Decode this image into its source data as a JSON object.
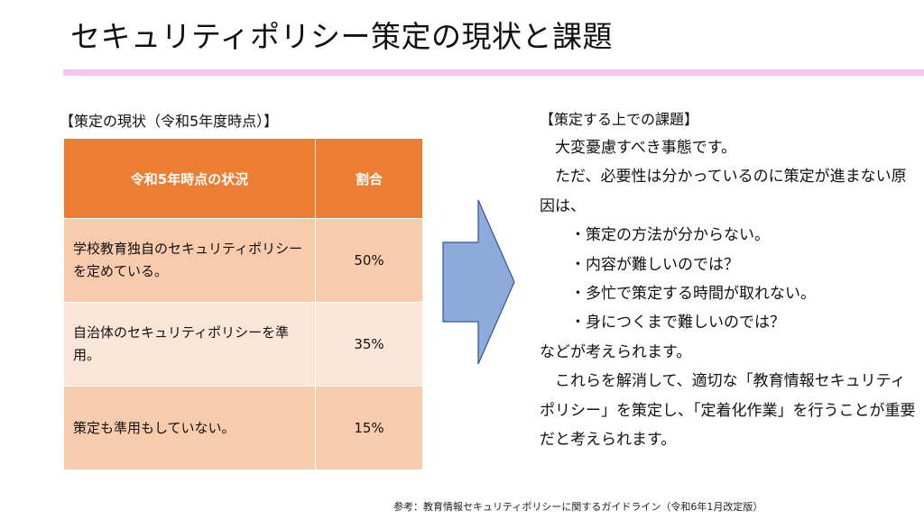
{
  "title": "セキュリティポリシー策定の現状と課題",
  "left": {
    "heading": "【策定の現状（令和5年度時点）】",
    "table": {
      "headers": [
        "令和5年時点の状況",
        "割合"
      ],
      "rows": [
        {
          "status": "学校教育独自のセキュリティポリシーを定めている。",
          "ratio": "50%"
        },
        {
          "status": "自治体のセキュリティポリシーを準用。",
          "ratio": "35%"
        },
        {
          "status": "策定も準用もしていない。",
          "ratio": "15%"
        }
      ]
    }
  },
  "arrow": {
    "icon": "right-arrow-icon",
    "color": "#8eaadb",
    "border": "#2f5597"
  },
  "right": {
    "heading": "【策定する上での課題】",
    "lines": [
      "　大変憂慮すべき事態です。",
      "　ただ、必要性は分かっているのに策定が進まない原因は、",
      "　　・策定の方法が分からない。",
      "　　・内容が難しいのでは？",
      "　　・多忙で策定する時間が取れない。",
      "　　・身につくまで難しいのでは？",
      "などが考えられます。",
      "　これらを解消して、適切な「教育情報セキュリティポリシー」を策定し、「定着化作業」を行うことが重要だと考えられます。"
    ]
  },
  "footnote": "参考：教育情報セキュリティポリシーに関するガイドライン（令和6年1月改定版）",
  "colors": {
    "accent_rule": "#f7c3f2",
    "table_header": "#ed7d31",
    "table_row_dark": "#f8cbad",
    "table_row_light": "#fbe5d6"
  }
}
